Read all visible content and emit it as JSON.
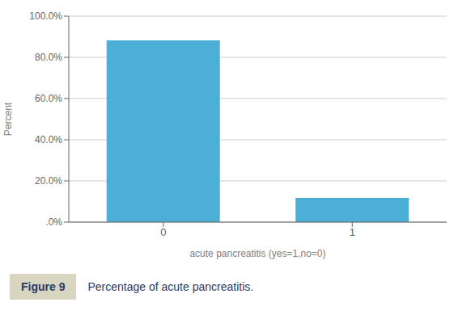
{
  "chart_data": {
    "type": "bar",
    "categories": [
      "0",
      "1"
    ],
    "values": [
      88.2,
      11.8
    ],
    "color": "#4bafd6",
    "xlabel": "acute pancreatitis (yes=1,no=0)",
    "ylabel": "Percent",
    "ylim": [
      0,
      100
    ],
    "yticks": [
      {
        "value": 0,
        "label": ".0%"
      },
      {
        "value": 20,
        "label": "20.0%"
      },
      {
        "value": 40,
        "label": "40.0%"
      },
      {
        "value": 60,
        "label": "60.0%"
      },
      {
        "value": 80,
        "label": "80.0%"
      },
      {
        "value": 100,
        "label": "100.0%"
      }
    ],
    "grid": true,
    "annotations": [
      "Figure 9",
      "Percentage of acute pancreatitis."
    ]
  }
}
